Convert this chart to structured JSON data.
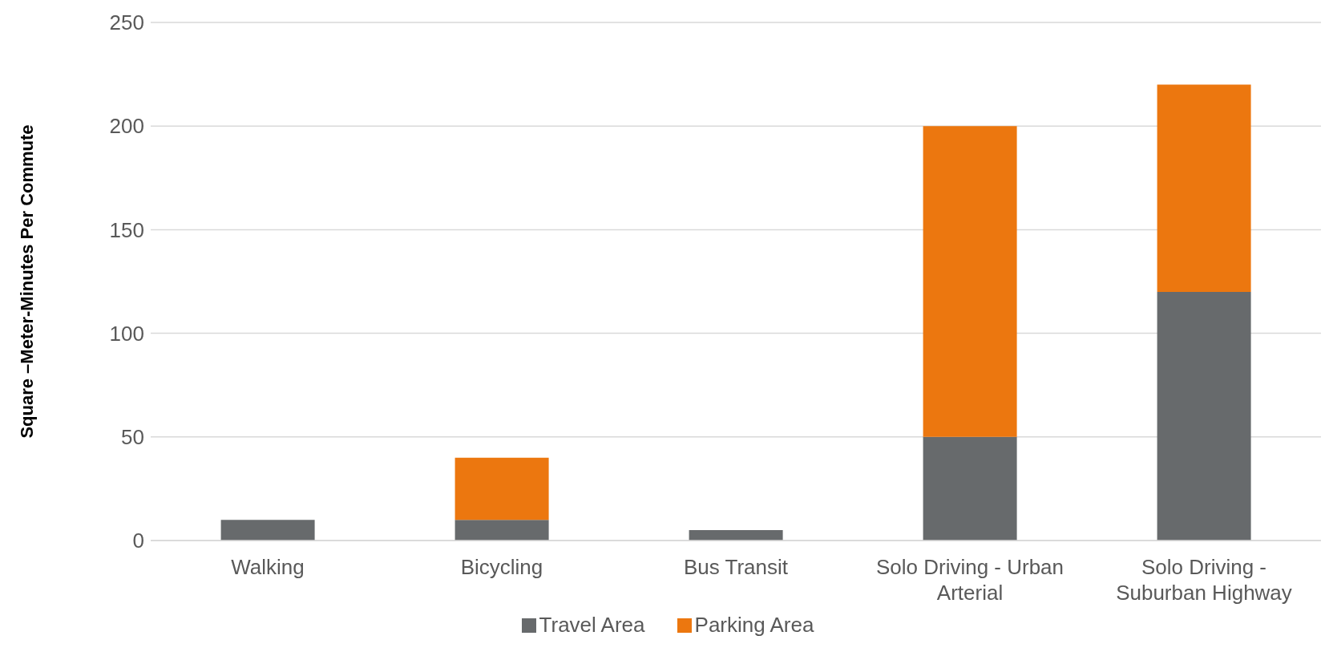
{
  "chart_data": {
    "type": "bar",
    "stacked": true,
    "ylabel": "Square –Meter-Minutes Per Commute",
    "categories": [
      "Walking",
      "Bicycling",
      "Bus Transit",
      "Solo Driving - Urban Arterial",
      "Solo Driving - Suburban Highway"
    ],
    "series": [
      {
        "name": "Travel Area",
        "color": "#676a6c",
        "values": [
          10,
          10,
          5,
          50,
          120
        ]
      },
      {
        "name": "Parking Area",
        "color": "#ec770f",
        "values": [
          0,
          30,
          0,
          150,
          100
        ]
      }
    ],
    "ylim": [
      0,
      250
    ],
    "yticks": [
      0,
      50,
      100,
      150,
      200,
      250
    ],
    "grid": "y",
    "legend": "bottom"
  }
}
